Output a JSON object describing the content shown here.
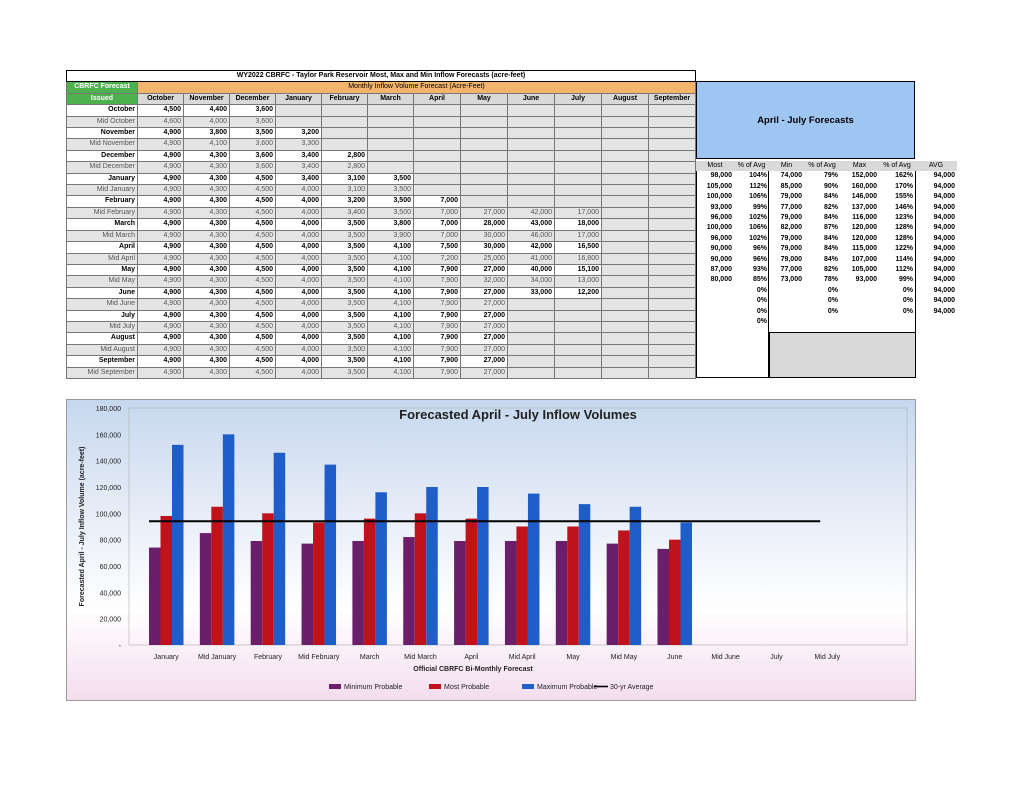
{
  "table": {
    "title": "WY2022 CBRFC - Taylor Park Reservoir Most, Max and Min Inflow Forecasts (acre-feet)",
    "corner_label_1": "CBRFC Forecast",
    "corner_label_2": "Issued",
    "band_label": "Monthly Inflow Volume Forecast (Acre-Feet)",
    "months": [
      "October",
      "November",
      "December",
      "January",
      "February",
      "March",
      "April",
      "May",
      "June",
      "July",
      "August",
      "September"
    ],
    "rows": [
      {
        "label": "October",
        "mid": false,
        "values": [
          "4,500",
          "4,400",
          "3,600"
        ]
      },
      {
        "label": "Mid October",
        "mid": true,
        "values": [
          "4,600",
          "4,000",
          "3,600"
        ]
      },
      {
        "label": "November",
        "mid": false,
        "values": [
          "4,900",
          "3,800",
          "3,500",
          "3,200"
        ]
      },
      {
        "label": "Mid November",
        "mid": true,
        "values": [
          "4,900",
          "4,100",
          "3,600",
          "3,300"
        ]
      },
      {
        "label": "December",
        "mid": false,
        "values": [
          "4,900",
          "4,300",
          "3,600",
          "3,400",
          "2,800"
        ]
      },
      {
        "label": "Mid December",
        "mid": true,
        "values": [
          "4,900",
          "4,300",
          "3,600",
          "3,400",
          "2,800"
        ]
      },
      {
        "label": "January",
        "mid": false,
        "values": [
          "4,900",
          "4,300",
          "4,500",
          "3,400",
          "3,100",
          "3,500"
        ]
      },
      {
        "label": "Mid January",
        "mid": true,
        "values": [
          "4,900",
          "4,300",
          "4,500",
          "4,000",
          "3,100",
          "3,500"
        ]
      },
      {
        "label": "February",
        "mid": false,
        "values": [
          "4,900",
          "4,300",
          "4,500",
          "4,000",
          "3,200",
          "3,500",
          "7,000"
        ]
      },
      {
        "label": "Mid February",
        "mid": true,
        "values": [
          "4,900",
          "4,300",
          "4,500",
          "4,000",
          "3,400",
          "3,500",
          "7,000",
          "27,000",
          "42,000",
          "17,000"
        ]
      },
      {
        "label": "March",
        "mid": false,
        "values": [
          "4,900",
          "4,300",
          "4,500",
          "4,000",
          "3,500",
          "3,800",
          "7,000",
          "28,000",
          "43,000",
          "18,000"
        ]
      },
      {
        "label": "Mid March",
        "mid": true,
        "values": [
          "4,900",
          "4,300",
          "4,500",
          "4,000",
          "3,500",
          "3,900",
          "7,000",
          "30,000",
          "46,000",
          "17,000"
        ]
      },
      {
        "label": "April",
        "mid": false,
        "values": [
          "4,900",
          "4,300",
          "4,500",
          "4,000",
          "3,500",
          "4,100",
          "7,500",
          "30,000",
          "42,000",
          "16,500"
        ]
      },
      {
        "label": "Mid April",
        "mid": true,
        "values": [
          "4,900",
          "4,300",
          "4,500",
          "4,000",
          "3,500",
          "4,100",
          "7,200",
          "25,000",
          "41,000",
          "16,800"
        ]
      },
      {
        "label": "May",
        "mid": false,
        "values": [
          "4,900",
          "4,300",
          "4,500",
          "4,000",
          "3,500",
          "4,100",
          "7,900",
          "27,000",
          "40,000",
          "15,100"
        ]
      },
      {
        "label": "Mid May",
        "mid": true,
        "values": [
          "4,900",
          "4,300",
          "4,500",
          "4,000",
          "3,500",
          "4,100",
          "7,900",
          "32,000",
          "34,000",
          "13,000"
        ]
      },
      {
        "label": "June",
        "mid": false,
        "values": [
          "4,900",
          "4,300",
          "4,500",
          "4,000",
          "3,500",
          "4,100",
          "7,900",
          "27,000",
          "33,000",
          "12,200"
        ]
      },
      {
        "label": "Mid June",
        "mid": true,
        "values": [
          "4,900",
          "4,300",
          "4,500",
          "4,000",
          "3,500",
          "4,100",
          "7,900",
          "27,000"
        ]
      },
      {
        "label": "July",
        "mid": false,
        "values": [
          "4,900",
          "4,300",
          "4,500",
          "4,000",
          "3,500",
          "4,100",
          "7,900",
          "27,000"
        ]
      },
      {
        "label": "Mid July",
        "mid": true,
        "values": [
          "4,900",
          "4,300",
          "4,500",
          "4,000",
          "3,500",
          "4,100",
          "7,900",
          "27,000"
        ]
      },
      {
        "label": "August",
        "mid": false,
        "values": [
          "4,900",
          "4,300",
          "4,500",
          "4,000",
          "3,500",
          "4,100",
          "7,900",
          "27,000"
        ]
      },
      {
        "label": "Mid August",
        "mid": true,
        "values": [
          "4,900",
          "4,300",
          "4,500",
          "4,000",
          "3,500",
          "4,100",
          "7,900",
          "27,000"
        ]
      },
      {
        "label": "September",
        "mid": false,
        "values": [
          "4,900",
          "4,300",
          "4,500",
          "4,000",
          "3,500",
          "4,100",
          "7,900",
          "27,000"
        ]
      },
      {
        "label": "Mid September",
        "mid": true,
        "values": [
          "4,900",
          "4,300",
          "4,500",
          "4,000",
          "3,500",
          "4,100",
          "7,900",
          "27,000"
        ]
      }
    ]
  },
  "aj_table": {
    "title": "April - July Forecasts",
    "headers": [
      "Most",
      "% of Avg",
      "Min",
      "% of Avg",
      "Max",
      "% of Avg",
      "AVG"
    ],
    "rows": [
      [
        "98,000",
        "104%",
        "74,000",
        "79%",
        "152,000",
        "162%",
        "94,000"
      ],
      [
        "105,000",
        "112%",
        "85,000",
        "90%",
        "160,000",
        "170%",
        "94,000"
      ],
      [
        "100,000",
        "106%",
        "79,000",
        "84%",
        "146,000",
        "155%",
        "94,000"
      ],
      [
        "93,000",
        "99%",
        "77,000",
        "82%",
        "137,000",
        "146%",
        "94,000"
      ],
      [
        "96,000",
        "102%",
        "79,000",
        "84%",
        "116,000",
        "123%",
        "94,000"
      ],
      [
        "100,000",
        "106%",
        "82,000",
        "87%",
        "120,000",
        "128%",
        "94,000"
      ],
      [
        "96,000",
        "102%",
        "79,000",
        "84%",
        "120,000",
        "128%",
        "94,000"
      ],
      [
        "90,000",
        "96%",
        "79,000",
        "84%",
        "115,000",
        "122%",
        "94,000"
      ],
      [
        "90,000",
        "96%",
        "79,000",
        "84%",
        "107,000",
        "114%",
        "94,000"
      ],
      [
        "87,000",
        "93%",
        "77,000",
        "82%",
        "105,000",
        "112%",
        "94,000"
      ],
      [
        "80,000",
        "85%",
        "73,000",
        "78%",
        "93,000",
        "99%",
        "94,000"
      ],
      [
        "",
        "0%",
        "",
        "0%",
        "",
        "0%",
        "94,000"
      ],
      [
        "",
        "0%",
        "",
        "0%",
        "",
        "0%",
        "94,000"
      ],
      [
        "",
        "0%",
        "",
        "0%",
        "",
        "0%",
        "94,000"
      ],
      [
        "",
        "0%",
        "",
        "",
        "",
        "",
        ""
      ]
    ]
  },
  "chart_data": {
    "type": "bar",
    "title": "Forecasted April - July Inflow Volumes",
    "xlabel": "Official CBRFC Bi-Monthly Forecast",
    "ylabel": "Forecasted April - July Inflow Volume (acre-feet)",
    "ylim": [
      0,
      180000
    ],
    "ytick_values": [
      0,
      20000,
      40000,
      60000,
      80000,
      100000,
      120000,
      140000,
      160000,
      180000
    ],
    "ytick_labels": [
      "-",
      "20,000",
      "40,000",
      "60,000",
      "80,000",
      "100,000",
      "120,000",
      "140,000",
      "160,000",
      "180,000"
    ],
    "categories": [
      "January",
      "Mid January",
      "February",
      "Mid February",
      "March",
      "Mid March",
      "April",
      "Mid April",
      "May",
      "Mid May",
      "June",
      "Mid June",
      "July",
      "Mid July"
    ],
    "series": [
      {
        "name": "Minimum Probable",
        "color": "#6b1f6b",
        "values": [
          74000,
          85000,
          79000,
          77000,
          79000,
          82000,
          79000,
          79000,
          79000,
          77000,
          73000,
          null,
          null,
          null
        ]
      },
      {
        "name": "Most Probable",
        "color": "#c0121a",
        "values": [
          98000,
          105000,
          100000,
          93000,
          96000,
          100000,
          96000,
          90000,
          90000,
          87000,
          80000,
          null,
          null,
          null
        ]
      },
      {
        "name": "Maximum Probable",
        "color": "#1f5ec8",
        "values": [
          152000,
          160000,
          146000,
          137000,
          116000,
          120000,
          120000,
          115000,
          107000,
          105000,
          93000,
          null,
          null,
          null
        ]
      }
    ],
    "average_line": {
      "name": "30-yr Average",
      "value": 94000,
      "color": "#000000"
    },
    "legend_position": "bottom"
  }
}
